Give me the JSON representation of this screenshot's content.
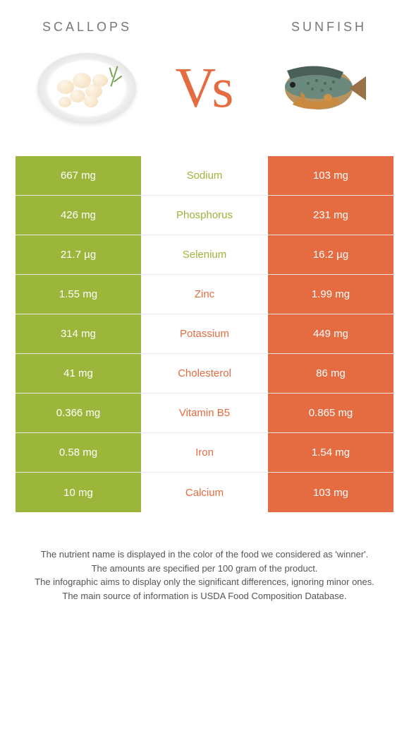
{
  "left_name": "Scallops",
  "right_name": "Sunfish",
  "vs_v": "V",
  "vs_s": "S",
  "colors": {
    "green": "#9bb63a",
    "orange": "#e56b41"
  },
  "rows": [
    {
      "nutrient": "Sodium",
      "left": "667 mg",
      "right": "103 mg",
      "winner": "left"
    },
    {
      "nutrient": "Phosphorus",
      "left": "426 mg",
      "right": "231 mg",
      "winner": "left"
    },
    {
      "nutrient": "Selenium",
      "left": "21.7 µg",
      "right": "16.2 µg",
      "winner": "left"
    },
    {
      "nutrient": "Zinc",
      "left": "1.55 mg",
      "right": "1.99 mg",
      "winner": "right"
    },
    {
      "nutrient": "Potassium",
      "left": "314 mg",
      "right": "449 mg",
      "winner": "right"
    },
    {
      "nutrient": "Cholesterol",
      "left": "41 mg",
      "right": "86 mg",
      "winner": "right"
    },
    {
      "nutrient": "Vitamin B5",
      "left": "0.366 mg",
      "right": "0.865 mg",
      "winner": "right"
    },
    {
      "nutrient": "Iron",
      "left": "0.58 mg",
      "right": "1.54 mg",
      "winner": "right"
    },
    {
      "nutrient": "Calcium",
      "left": "10 mg",
      "right": "103 mg",
      "winner": "right"
    }
  ],
  "footer": {
    "l1": "The nutrient name is displayed in the color of the food we considered as 'winner'.",
    "l2": "The amounts are specified per 100 gram of the product.",
    "l3": "The infographic aims to display only the significant differences, ignoring minor ones.",
    "l4": "The main source of information is USDA Food Composition Database."
  }
}
